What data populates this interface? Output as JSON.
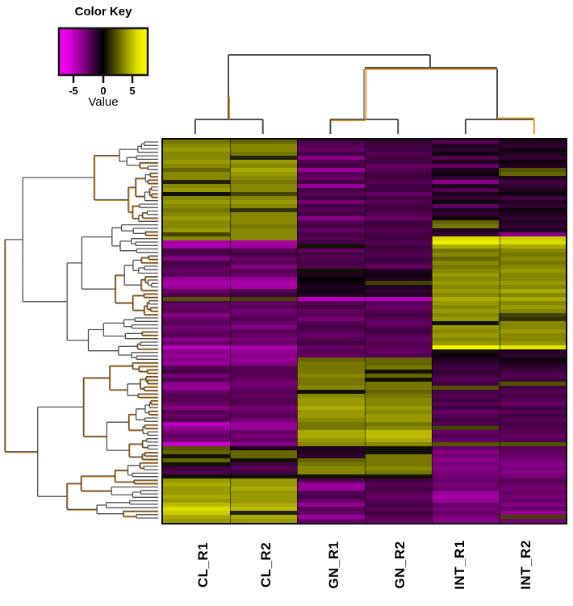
{
  "color_key": {
    "title": "Color Key",
    "ticks": [
      "-5",
      "0",
      "5"
    ],
    "label": "Value",
    "negative_color": "#FF00FF",
    "zero_color": "#000000",
    "positive_color": "#FFFF00"
  },
  "dendrogram": {
    "line_color": "#4F4F4F",
    "accent_color": "#E8920E",
    "column_groups": [
      [
        "CL_R1",
        "CL_R2"
      ],
      [
        "GN_R1",
        "GN_R2"
      ],
      [
        "INT_R1",
        "INT_R2"
      ]
    ]
  },
  "chart_data": {
    "type": "heatmap",
    "columns": [
      "CL_R1",
      "CL_R2",
      "GN_R1",
      "GN_R2",
      "INT_R1",
      "INT_R2"
    ],
    "value_range": [
      -7.5,
      7.5
    ],
    "colorscale": [
      [
        -7.5,
        "#FF00FF"
      ],
      [
        0,
        "#000000"
      ],
      [
        7.5,
        "#FFFF00"
      ]
    ],
    "legend": {
      "title": "Color Key",
      "axis_label": "Value",
      "axis_ticks": [
        -5,
        0,
        5
      ]
    },
    "rows": [
      [
        3.5,
        3,
        -2,
        -1.5,
        -2.5,
        -1
      ],
      [
        4,
        4,
        -2.5,
        -2,
        -1,
        -1.5
      ],
      [
        4.5,
        4,
        -3,
        -2,
        -1.5,
        -0.5
      ],
      [
        4,
        3.5,
        -2,
        -2.5,
        -0.5,
        -1
      ],
      [
        4,
        1,
        -4,
        -2,
        -2.5,
        -1.5
      ],
      [
        4.5,
        4.5,
        -2.5,
        -2,
        -1,
        -0.5
      ],
      [
        4,
        4,
        -2,
        -3,
        -3,
        -1
      ],
      [
        3,
        5,
        -4.5,
        -2.5,
        -1,
        2.5
      ],
      [
        4,
        4.5,
        -2.5,
        -2,
        -0.5,
        3
      ],
      [
        4,
        4,
        -3,
        -2,
        -1.5,
        -1
      ],
      [
        1,
        3.5,
        -2,
        -2.5,
        -4,
        -2
      ],
      [
        4,
        4,
        -4.5,
        -2,
        -1,
        -1.5
      ],
      [
        4.5,
        4,
        -2,
        -2,
        -2.5,
        -1
      ],
      [
        0.5,
        2,
        -2.5,
        -3,
        -1,
        -0.5
      ],
      [
        4,
        4,
        -2,
        -2,
        -1.5,
        -2
      ],
      [
        4.5,
        4.5,
        -3.5,
        -2.5,
        -0.5,
        -1
      ],
      [
        4,
        4,
        -2,
        -2,
        -3,
        -1.5
      ],
      [
        3.5,
        1.5,
        -2.5,
        -2,
        -1,
        -0.5
      ],
      [
        4,
        4,
        -2,
        -2.5,
        -1.5,
        -1
      ],
      [
        4.5,
        4,
        -4,
        -3,
        -0.5,
        -1.5
      ],
      [
        4,
        4,
        -2.5,
        -2,
        3,
        -1
      ],
      [
        4,
        3.5,
        -2,
        -2,
        3.5,
        -1.5
      ],
      [
        4.5,
        4,
        -3,
        -2.5,
        -1,
        -1
      ],
      [
        2,
        4,
        -2,
        -2,
        -1.5,
        -4
      ],
      [
        4,
        4,
        -2.5,
        -2,
        6.5,
        6
      ],
      [
        -5,
        -5,
        -2,
        -2.5,
        7,
        6.5
      ],
      [
        -5,
        -4.5,
        0.5,
        -2,
        5,
        5
      ],
      [
        -2,
        -2.5,
        -3,
        -2,
        3.5,
        4
      ],
      [
        -2.5,
        -2,
        -2,
        -2.5,
        4,
        3.5
      ],
      [
        -4,
        -3,
        -2.5,
        -2,
        3,
        4
      ],
      [
        -2,
        -2.5,
        -2,
        -2,
        4,
        3.5
      ],
      [
        -2.5,
        -4,
        -2.5,
        -3,
        3.5,
        4
      ],
      [
        -3,
        -2.5,
        0.5,
        -1,
        4,
        4.5
      ],
      [
        -2.5,
        -3,
        -1,
        -0.5,
        4.5,
        4
      ],
      [
        -4.5,
        -4.5,
        0,
        -1,
        4,
        4
      ],
      [
        -5,
        -5,
        -0.5,
        2,
        4.5,
        4.5
      ],
      [
        -4.5,
        -5,
        -1,
        -1,
        4,
        4
      ],
      [
        -3,
        -2.5,
        -0.5,
        -1.5,
        4.5,
        5
      ],
      [
        -2.5,
        -2,
        -1,
        -1,
        4,
        4
      ],
      [
        2.5,
        2,
        -5.5,
        -5.5,
        5,
        5
      ],
      [
        -2.5,
        -3,
        -2.5,
        -2.5,
        4.5,
        4
      ],
      [
        -3,
        -2.5,
        -2,
        -3,
        4,
        4.5
      ],
      [
        -2.5,
        -3.5,
        -3,
        -2.5,
        4.5,
        4
      ],
      [
        -4,
        -3,
        -2.5,
        -2,
        4,
        2
      ],
      [
        -3,
        -2.5,
        -3.5,
        -2.5,
        4.5,
        1.5
      ],
      [
        -2.5,
        -3,
        -2.5,
        -3,
        0.5,
        4
      ],
      [
        -3.5,
        -4,
        -2,
        -2.5,
        4.5,
        4
      ],
      [
        -3,
        -2.5,
        -2.5,
        -2,
        4,
        4.5
      ],
      [
        -2.5,
        -3,
        -3,
        -2.5,
        4.5,
        4
      ],
      [
        -4,
        -3.5,
        -2.5,
        -3,
        4,
        4
      ],
      [
        -3,
        -3,
        -2,
        -2.5,
        4.5,
        4.5
      ],
      [
        -5.5,
        -5,
        -3,
        -2.5,
        7.3,
        6.8
      ],
      [
        -4,
        -4.5,
        -2.5,
        -3,
        0.5,
        -1
      ],
      [
        -4.5,
        -4,
        -3,
        -2.5,
        -0.5,
        -1.5
      ],
      [
        -4,
        -4.5,
        3,
        3,
        -1,
        -0.5
      ],
      [
        -4.5,
        -4,
        3.5,
        3,
        -1.5,
        -1
      ],
      [
        -2.5,
        -2.5,
        3.5,
        3.5,
        -2,
        -1.5
      ],
      [
        -2,
        -2.5,
        3.5,
        0.5,
        -1.5,
        -2
      ],
      [
        -3.5,
        -2.5,
        4,
        3,
        -2,
        -2.5
      ],
      [
        -2.5,
        -3,
        3.5,
        0.5,
        -2.5,
        -2
      ],
      [
        -4,
        -3.5,
        3.5,
        3.5,
        -2,
        2.5
      ],
      [
        -4.5,
        -3,
        4,
        3.5,
        2.5,
        -2
      ],
      [
        -3,
        -2.5,
        0.5,
        3,
        -2,
        -2.5
      ],
      [
        -2.5,
        -3,
        4,
        3.5,
        -2.5,
        -2
      ],
      [
        -2.5,
        -2.5,
        4.5,
        4,
        -2,
        -2.5
      ],
      [
        -3,
        -2.5,
        4.5,
        4,
        -2.5,
        -3
      ],
      [
        -4,
        -3.5,
        5,
        4.5,
        -2,
        -2
      ],
      [
        -2.5,
        -3,
        4.5,
        4,
        -3,
        -2.5
      ],
      [
        -3,
        -2.5,
        4.5,
        4.5,
        -2.5,
        -2
      ],
      [
        -2.5,
        -3.5,
        4,
        4.5,
        -2,
        -2.5
      ],
      [
        -5.5,
        -4.5,
        3.5,
        3.5,
        -2.5,
        -2
      ],
      [
        -4.5,
        -4.5,
        3.5,
        4,
        2,
        -2.5
      ],
      [
        -3.5,
        -3,
        5,
        5.5,
        -3,
        -2.5
      ],
      [
        -3,
        -3.5,
        5,
        5.5,
        -2.5,
        -3
      ],
      [
        -3.5,
        -3,
        4.5,
        5,
        -3,
        -2.5
      ],
      [
        -6,
        -4,
        4,
        4,
        2.5,
        2.5
      ],
      [
        2.5,
        -1,
        -1,
        0.5,
        -3,
        -2.5
      ],
      [
        3,
        3,
        -1,
        0.5,
        -4,
        -3
      ],
      [
        0.5,
        3,
        -1.5,
        3.5,
        -3.5,
        -3
      ],
      [
        3,
        0.5,
        3,
        3.5,
        -4,
        -3.5
      ],
      [
        0.5,
        -2,
        3.5,
        3.5,
        -3.5,
        -4
      ],
      [
        -2,
        -2.5,
        4,
        4,
        -4,
        -3.5
      ],
      [
        -2.5,
        -2,
        4,
        3.5,
        -3.5,
        -4
      ],
      [
        0.5,
        0.5,
        0.5,
        0.5,
        -3.5,
        -3.5
      ],
      [
        4.5,
        4.5,
        -2.5,
        -2,
        -3,
        -2.5
      ],
      [
        5,
        4.5,
        -4.5,
        -2.5,
        -3.5,
        -3
      ],
      [
        4.5,
        5,
        -4.5,
        -2,
        -3,
        -3.5
      ],
      [
        4.5,
        4.5,
        -2.5,
        -2.5,
        -4.5,
        -3
      ],
      [
        5,
        4.5,
        -2,
        -3,
        -5,
        -3.5
      ],
      [
        4.5,
        4.5,
        -3,
        -2.5,
        -4.5,
        -3
      ],
      [
        5.5,
        5,
        -4.5,
        -2,
        -3,
        -4
      ],
      [
        6.5,
        5.5,
        -2.5,
        -2.5,
        -3.5,
        -3
      ],
      [
        6,
        1,
        -3,
        -2,
        -3,
        -4.5
      ],
      [
        5,
        5,
        -4.5,
        -2.5,
        -3.5,
        2
      ],
      [
        4.5,
        4.5,
        -3,
        -3,
        -4,
        -3.5
      ]
    ]
  }
}
